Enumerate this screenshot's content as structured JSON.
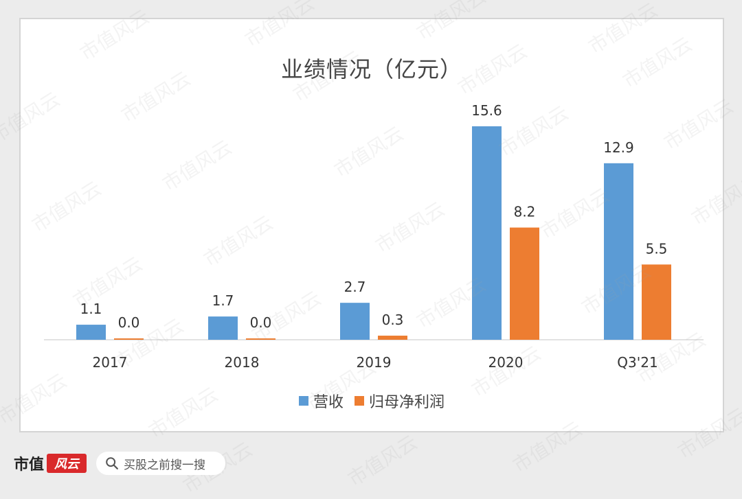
{
  "chart_data": {
    "type": "bar",
    "title": "业绩情况（亿元）",
    "categories": [
      "2017",
      "2018",
      "2019",
      "2020",
      "Q3'21"
    ],
    "series": [
      {
        "name": "营收",
        "color": "#5b9bd5",
        "values": [
          1.1,
          1.7,
          2.7,
          15.6,
          12.9
        ]
      },
      {
        "name": "归母净利润",
        "color": "#ed7d31",
        "values": [
          0.0,
          0.0,
          0.3,
          8.2,
          5.5
        ]
      }
    ],
    "value_labels": [
      [
        "1.1",
        "1.7",
        "2.7",
        "15.6",
        "12.9"
      ],
      [
        "0.0",
        "0.0",
        "0.3",
        "8.2",
        "5.5"
      ]
    ],
    "xlabel": "",
    "ylabel": "",
    "ylim": [
      0,
      15.6
    ],
    "grid": false,
    "legend": "bottom"
  },
  "watermark_text": "市值风云",
  "footer": {
    "brand_text": "市值",
    "brand_badge": "风云",
    "search_placeholder": "买股之前搜一搜",
    "search_icon": "search-icon"
  }
}
